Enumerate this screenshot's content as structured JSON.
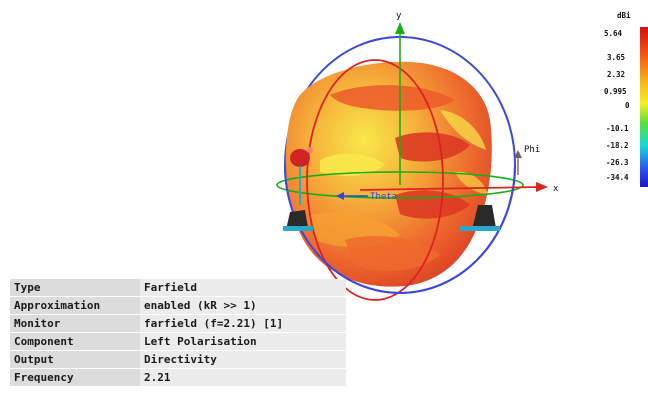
{
  "axes": {
    "x": "x",
    "y": "y",
    "phi": "Phi",
    "theta": "Theta"
  },
  "legend": {
    "unit": "dBi",
    "ticks": [
      "5.64",
      "3.65",
      "2.32",
      "0.995",
      "0",
      "-10.1",
      "-18.2",
      "-26.3",
      "-34.4"
    ]
  },
  "info": [
    {
      "key": "Type",
      "value": "Farfield"
    },
    {
      "key": "Approximation",
      "value": "enabled (kR >> 1)"
    },
    {
      "key": "Monitor",
      "value": "farfield (f=2.21) [1]"
    },
    {
      "key": "Component",
      "value": "Left Polarisation"
    },
    {
      "key": "Output",
      "value": "Directivity"
    },
    {
      "key": "Frequency",
      "value": "2.21"
    }
  ],
  "colors": {
    "blue_ring": "#3a48e0",
    "red_ring": "#dd2222",
    "green_axis": "#16b016",
    "pattern_red": "#e8462a",
    "pattern_orange": "#f59a2c",
    "pattern_yellow": "#f8e84a"
  }
}
